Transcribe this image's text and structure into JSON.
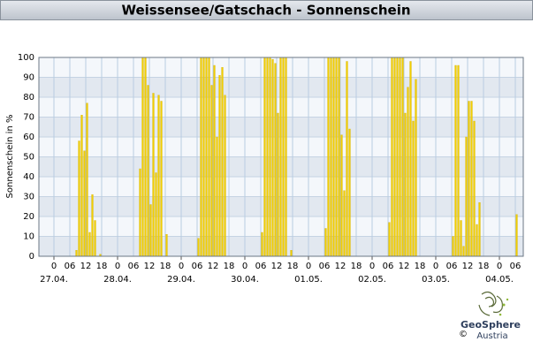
{
  "chart_data": {
    "type": "bar",
    "title": "Weissensee/Gatschach - Sonnenschein",
    "y_label": "Sonnenschein in %",
    "color": "#f2cf00",
    "grid": true,
    "xlim": [
      -5.67,
      177
    ],
    "ylim": [
      0,
      100
    ],
    "yticks": [
      0,
      10,
      20,
      30,
      40,
      50,
      60,
      70,
      80,
      90,
      100
    ],
    "xticks": [
      0,
      {
        "value": 6,
        "label": "06"
      },
      {
        "value": 12,
        "label": "12"
      },
      {
        "value": 18,
        "label": "18"
      },
      {
        "value": 24,
        "label": "0"
      },
      {
        "value": 30,
        "label": "06"
      },
      {
        "value": 36,
        "label": "12"
      },
      {
        "value": 42,
        "label": "18"
      },
      {
        "value": 48,
        "label": "0"
      },
      {
        "value": 54,
        "label": "06"
      },
      {
        "value": 60,
        "label": "12"
      },
      {
        "value": 66,
        "label": "18"
      },
      {
        "value": 72,
        "label": "0"
      },
      {
        "value": 78,
        "label": "06"
      },
      {
        "value": 84,
        "label": "12"
      },
      {
        "value": 90,
        "label": "18"
      },
      {
        "value": 96,
        "label": "0"
      },
      {
        "value": 102,
        "label": "06"
      },
      {
        "value": 108,
        "label": "12"
      },
      {
        "value": 114,
        "label": "18"
      },
      {
        "value": 120,
        "label": "0"
      },
      {
        "value": 126,
        "label": "06"
      },
      {
        "value": 132,
        "label": "12"
      },
      {
        "value": 138,
        "label": "18"
      },
      {
        "value": 144,
        "label": "0"
      },
      {
        "value": 150,
        "label": "06"
      },
      {
        "value": 156,
        "label": "12"
      },
      {
        "value": 162,
        "label": "18"
      },
      {
        "value": 168,
        "label": "0"
      },
      {
        "value": 174,
        "label": "06"
      }
    ],
    "date_ticks": [
      {
        "value": 0,
        "label": "27.04."
      },
      {
        "value": 24,
        "label": "28.04."
      },
      {
        "value": 48,
        "label": "29.04."
      },
      {
        "value": 72,
        "label": "30.04."
      },
      {
        "value": 96,
        "label": "01.05."
      },
      {
        "value": 120,
        "label": "02.05."
      },
      {
        "value": 144,
        "label": "03.05."
      },
      {
        "value": 168,
        "label": "04.05."
      }
    ],
    "x": [
      8,
      9,
      10,
      11,
      12,
      13,
      14,
      15,
      17,
      32,
      33,
      34,
      35,
      36,
      37,
      38,
      39,
      40,
      42,
      54,
      55,
      56,
      57,
      58,
      59,
      60,
      61,
      62,
      63,
      64,
      78,
      79,
      80,
      81,
      82,
      83,
      84,
      85,
      86,
      87,
      89,
      102,
      103,
      104,
      105,
      106,
      107,
      108,
      109,
      110,
      111,
      126,
      127,
      128,
      129,
      130,
      131,
      132,
      133,
      134,
      135,
      136,
      150,
      151,
      152,
      153,
      154,
      155,
      156,
      157,
      158,
      159,
      160,
      174
    ],
    "values": [
      3,
      58,
      71,
      53,
      77,
      12,
      31,
      18,
      1,
      44,
      100,
      100,
      86,
      26,
      82,
      42,
      81,
      78,
      11,
      9,
      100,
      100,
      100,
      100,
      86,
      96,
      60,
      91,
      95,
      81,
      12,
      100,
      100,
      100,
      99,
      97,
      72,
      100,
      100,
      100,
      3,
      14,
      100,
      100,
      100,
      100,
      100,
      61,
      33,
      98,
      64,
      17,
      100,
      100,
      100,
      100,
      100,
      72,
      85,
      98,
      68,
      89,
      10,
      96,
      96,
      18,
      5,
      60,
      78,
      78,
      68,
      16,
      27,
      21
    ]
  },
  "logo": {
    "name": "GeoSphere",
    "sub": "Austria",
    "copyright": "©"
  }
}
